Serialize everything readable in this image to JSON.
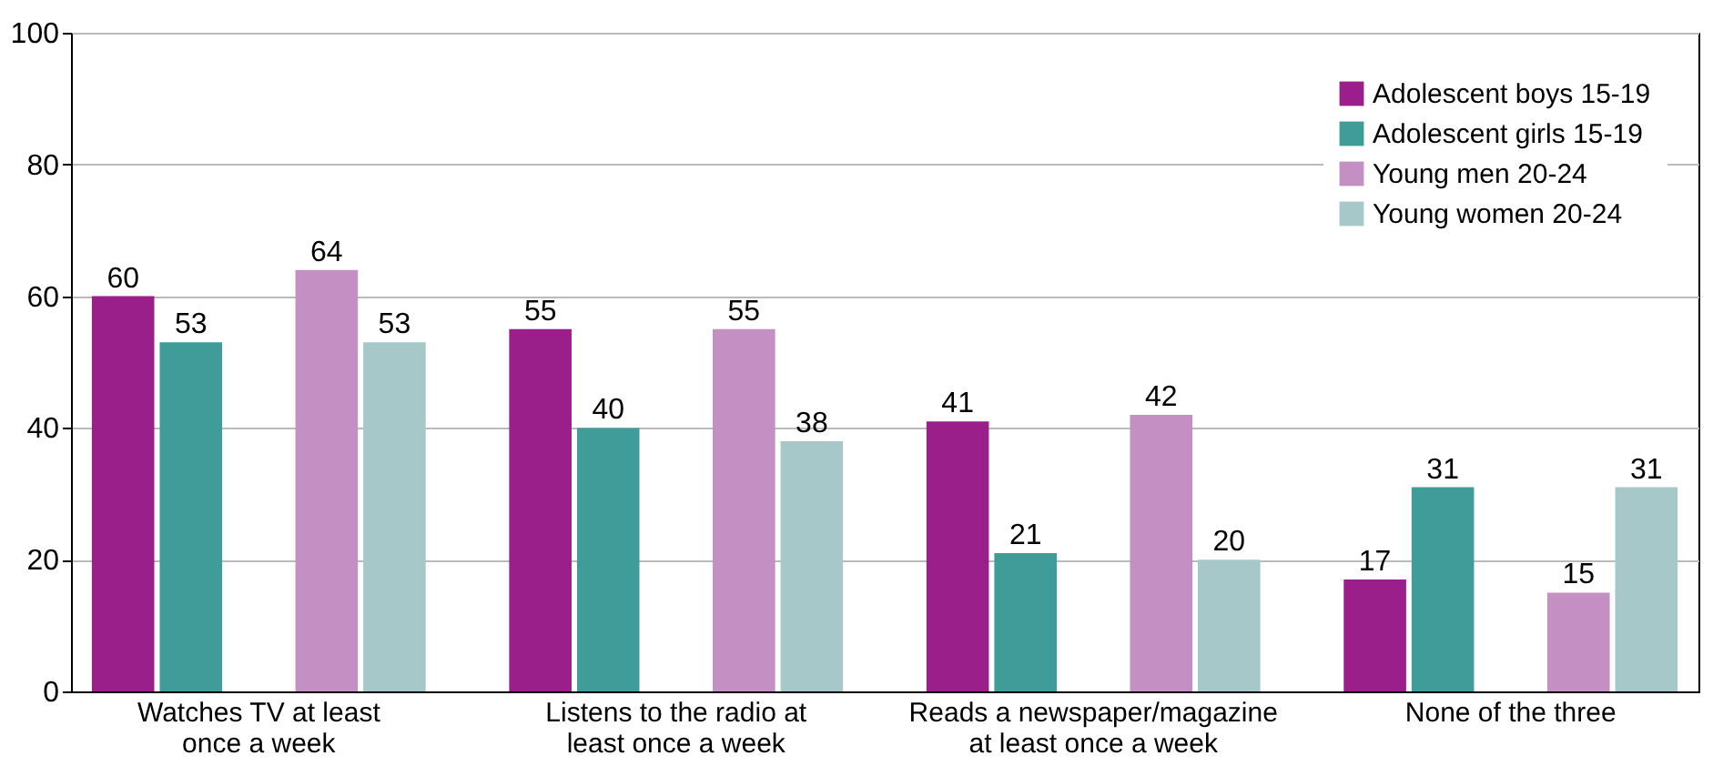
{
  "chart_data": {
    "type": "bar",
    "categories": [
      "Watches TV at least\nonce a week",
      "Listens to the radio at\nleast once a week",
      "Reads a newspaper/magazine\nat least once a week",
      "None of the three"
    ],
    "series": [
      {
        "name": "Adolescent boys 15-19",
        "color": "#9b1f8b",
        "values": [
          60,
          55,
          41,
          17
        ]
      },
      {
        "name": "Adolescent girls 15-19",
        "color": "#3f9c99",
        "values": [
          53,
          40,
          21,
          31
        ]
      },
      {
        "name": "Young men 20-24",
        "color": "#c48fc3",
        "values": [
          64,
          55,
          42,
          15
        ]
      },
      {
        "name": "Young women 20-24",
        "color": "#a6c8c9",
        "values": [
          53,
          38,
          20,
          31
        ]
      }
    ],
    "ylim": [
      0,
      100
    ],
    "yticks": [
      0,
      20,
      40,
      60,
      80,
      100
    ],
    "grid": "y",
    "legend": "top right",
    "data_labels": true
  }
}
